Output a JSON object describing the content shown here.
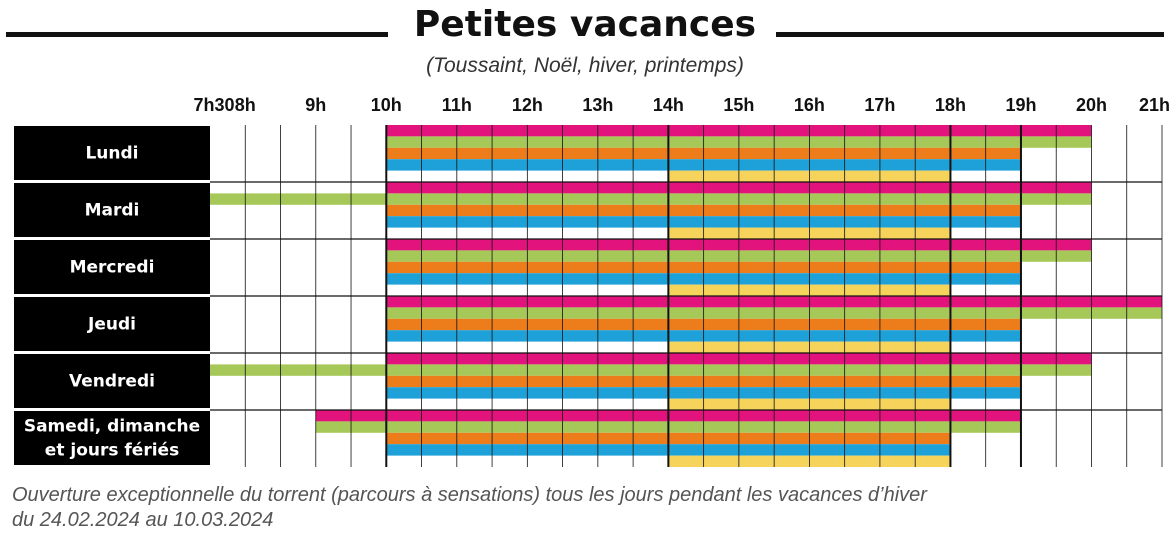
{
  "header": {
    "title": "Petites vacances",
    "subtitle": "(Toussaint, Noël, hiver, printemps)"
  },
  "footnote": {
    "line1": "Ouverture exceptionnelle du torrent (parcours à sensations) tous les jours pendant les vacances d’hiver",
    "line2": "du 24.02.2024 au 10.03.2024"
  },
  "colors": {
    "series": [
      "#e2137d",
      "#a6c858",
      "#ec7d1a",
      "#1ea1d8",
      "#f6d45c"
    ],
    "day_label_bg": "#000000",
    "grid": "#111111"
  },
  "chart_data": {
    "type": "table",
    "title": "Petites vacances",
    "subtitle": "(Toussaint, Noël, hiver, printemps)",
    "x_axis": {
      "unit": "hour",
      "range": [
        7.5,
        21
      ],
      "tick_labels": [
        {
          "value": 7.5,
          "label": "7h30"
        },
        {
          "value": 8,
          "label": "8h"
        },
        {
          "value": 9,
          "label": "9h"
        },
        {
          "value": 10,
          "label": "10h"
        },
        {
          "value": 11,
          "label": "11h"
        },
        {
          "value": 12,
          "label": "12h"
        },
        {
          "value": 13,
          "label": "13h"
        },
        {
          "value": 14,
          "label": "14h"
        },
        {
          "value": 15,
          "label": "15h"
        },
        {
          "value": 16,
          "label": "16h"
        },
        {
          "value": 17,
          "label": "17h"
        },
        {
          "value": 18,
          "label": "18h"
        },
        {
          "value": 19,
          "label": "19h"
        },
        {
          "value": 20,
          "label": "20h"
        },
        {
          "value": 21,
          "label": "21h"
        }
      ],
      "major_gridlines": [
        10,
        14,
        18,
        19
      ],
      "minor_gridlines": [
        8,
        8.5,
        9,
        9.5,
        10.5,
        11,
        11.5,
        12,
        12.5,
        13,
        13.5,
        14.5,
        15,
        15.5,
        16,
        16.5,
        17,
        17.5,
        18.5,
        19.5,
        20,
        20.5,
        21
      ]
    },
    "rows": [
      {
        "label": [
          "Lundi"
        ],
        "bars": [
          {
            "lane": 0,
            "start": 10,
            "end": 20
          },
          {
            "lane": 1,
            "start": 10,
            "end": 20
          },
          {
            "lane": 2,
            "start": 10,
            "end": 19
          },
          {
            "lane": 3,
            "start": 10,
            "end": 19
          },
          {
            "lane": 4,
            "start": 14,
            "end": 18
          }
        ]
      },
      {
        "label": [
          "Mardi"
        ],
        "bars": [
          {
            "lane": 0,
            "start": 10,
            "end": 20
          },
          {
            "lane": 1,
            "start": 7.5,
            "end": 20
          },
          {
            "lane": 2,
            "start": 10,
            "end": 19
          },
          {
            "lane": 3,
            "start": 10,
            "end": 19
          },
          {
            "lane": 4,
            "start": 14,
            "end": 18
          }
        ]
      },
      {
        "label": [
          "Mercredi"
        ],
        "bars": [
          {
            "lane": 0,
            "start": 10,
            "end": 20
          },
          {
            "lane": 1,
            "start": 10,
            "end": 20
          },
          {
            "lane": 2,
            "start": 10,
            "end": 19
          },
          {
            "lane": 3,
            "start": 10,
            "end": 19
          },
          {
            "lane": 4,
            "start": 14,
            "end": 18
          }
        ]
      },
      {
        "label": [
          "Jeudi"
        ],
        "bars": [
          {
            "lane": 0,
            "start": 10,
            "end": 21
          },
          {
            "lane": 1,
            "start": 10,
            "end": 21
          },
          {
            "lane": 2,
            "start": 10,
            "end": 19
          },
          {
            "lane": 3,
            "start": 10,
            "end": 19
          },
          {
            "lane": 4,
            "start": 14,
            "end": 18
          }
        ]
      },
      {
        "label": [
          "Vendredi"
        ],
        "bars": [
          {
            "lane": 0,
            "start": 10,
            "end": 20
          },
          {
            "lane": 1,
            "start": 7.5,
            "end": 20
          },
          {
            "lane": 2,
            "start": 10,
            "end": 19
          },
          {
            "lane": 3,
            "start": 10,
            "end": 19
          },
          {
            "lane": 4,
            "start": 14,
            "end": 18
          }
        ]
      },
      {
        "label": [
          "Samedi, dimanche",
          "et jours fériés"
        ],
        "bars": [
          {
            "lane": 0,
            "start": 9,
            "end": 19
          },
          {
            "lane": 1,
            "start": 9,
            "end": 19
          },
          {
            "lane": 2,
            "start": 10,
            "end": 18
          },
          {
            "lane": 3,
            "start": 10,
            "end": 18
          },
          {
            "lane": 4,
            "start": 14,
            "end": 18
          }
        ]
      }
    ]
  }
}
